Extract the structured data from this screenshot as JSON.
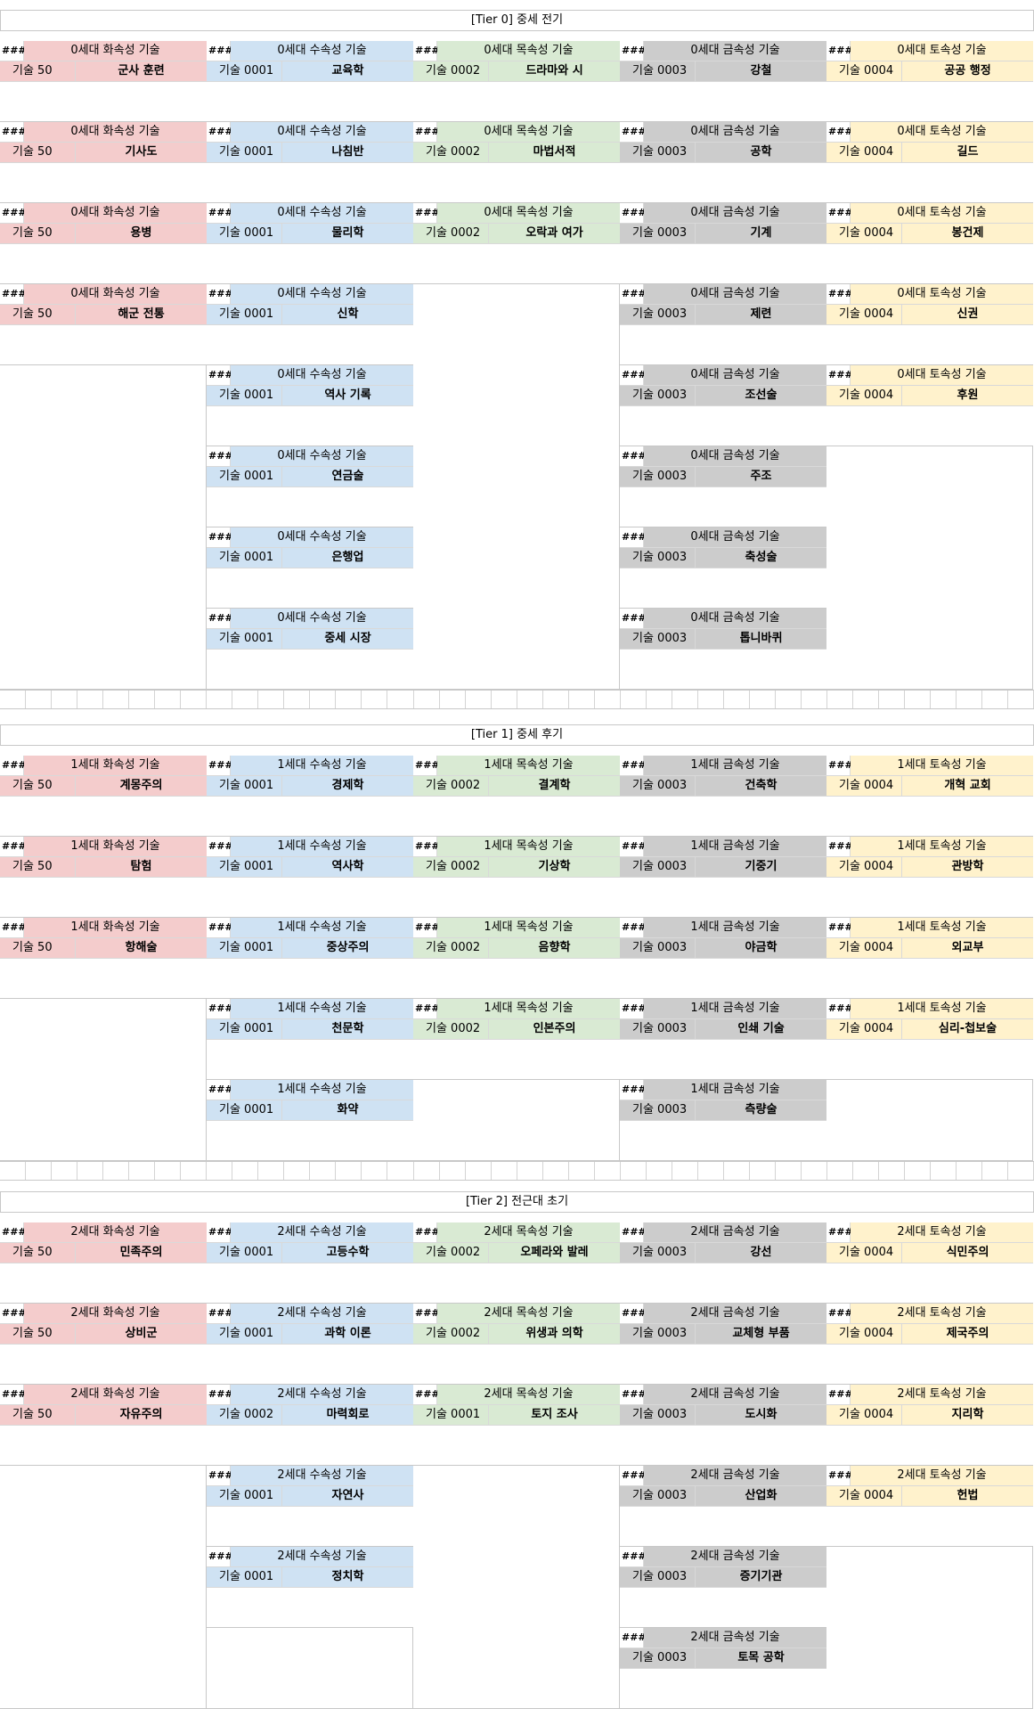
{
  "colors": {
    "fire": "#f4cccc",
    "water": "#cfe2f3",
    "wood": "#d9ead3",
    "metal": "#cccccc",
    "earth": "#fff2cc"
  },
  "hash_label": "###",
  "tiers": [
    {
      "title": "[Tier 0] 중세 전기",
      "columns": [
        {
          "element": "fire",
          "cards": [
            {
              "title": "0세대 화속성 기술",
              "num": "기술 50",
              "name": "군사 훈련"
            },
            {
              "title": "0세대 화속성 기술",
              "num": "기술 50",
              "name": "기사도"
            },
            {
              "title": "0세대 화속성 기술",
              "num": "기술 50",
              "name": "용병"
            },
            {
              "title": "0세대 화속성 기술",
              "num": "기술 50",
              "name": "해군 전통"
            }
          ]
        },
        {
          "element": "water",
          "cards": [
            {
              "title": "0세대 수속성 기술",
              "num": "기술 0001",
              "name": "교육학"
            },
            {
              "title": "0세대 수속성 기술",
              "num": "기술 0001",
              "name": "나침반"
            },
            {
              "title": "0세대 수속성 기술",
              "num": "기술 0001",
              "name": "물리학"
            },
            {
              "title": "0세대 수속성 기술",
              "num": "기술 0001",
              "name": "신학"
            },
            {
              "title": "0세대 수속성 기술",
              "num": "기술 0001",
              "name": "역사 기록"
            },
            {
              "title": "0세대 수속성 기술",
              "num": "기술 0001",
              "name": "연금술"
            },
            {
              "title": "0세대 수속성 기술",
              "num": "기술 0001",
              "name": "은행업"
            },
            {
              "title": "0세대 수속성 기술",
              "num": "기술 0001",
              "name": "중세 시장"
            }
          ]
        },
        {
          "element": "wood",
          "cards": [
            {
              "title": "0세대 목속성 기술",
              "num": "기술 0002",
              "name": "드라마와 시"
            },
            {
              "title": "0세대 목속성 기술",
              "num": "기술 0002",
              "name": "마법서적"
            },
            {
              "title": "0세대 목속성 기술",
              "num": "기술 0002",
              "name": "오락과 여가"
            }
          ]
        },
        {
          "element": "metal",
          "cards": [
            {
              "title": "0세대 금속성 기술",
              "num": "기술 0003",
              "name": "강철"
            },
            {
              "title": "0세대 금속성 기술",
              "num": "기술 0003",
              "name": "공학"
            },
            {
              "title": "0세대 금속성 기술",
              "num": "기술 0003",
              "name": "기계"
            },
            {
              "title": "0세대 금속성 기술",
              "num": "기술 0003",
              "name": "제련"
            },
            {
              "title": "0세대 금속성 기술",
              "num": "기술 0003",
              "name": "조선술"
            },
            {
              "title": "0세대 금속성 기술",
              "num": "기술 0003",
              "name": "주조"
            },
            {
              "title": "0세대 금속성 기술",
              "num": "기술 0003",
              "name": "축성술"
            },
            {
              "title": "0세대 금속성 기술",
              "num": "기술 0003",
              "name": "톱니바퀴"
            }
          ]
        },
        {
          "element": "earth",
          "cards": [
            {
              "title": "0세대 토속성 기술",
              "num": "기술 0004",
              "name": "공공 행정"
            },
            {
              "title": "0세대 토속성 기술",
              "num": "기술 0004",
              "name": "길드"
            },
            {
              "title": "0세대 토속성 기술",
              "num": "기술 0004",
              "name": "봉건제"
            },
            {
              "title": "0세대 토속성 기술",
              "num": "기술 0004",
              "name": "신권"
            },
            {
              "title": "0세대 토속성 기술",
              "num": "기술 0004",
              "name": "후원"
            }
          ]
        }
      ]
    },
    {
      "title": "[Tier 1] 중세 후기",
      "columns": [
        {
          "element": "fire",
          "cards": [
            {
              "title": "1세대 화속성 기술",
              "num": "기술 50",
              "name": "계몽주의"
            },
            {
              "title": "1세대 화속성 기술",
              "num": "기술 50",
              "name": "탐험"
            },
            {
              "title": "1세대 화속성 기술",
              "num": "기술 50",
              "name": "항해술"
            }
          ]
        },
        {
          "element": "water",
          "cards": [
            {
              "title": "1세대 수속성 기술",
              "num": "기술 0001",
              "name": "경제학"
            },
            {
              "title": "1세대 수속성 기술",
              "num": "기술 0001",
              "name": "역사학"
            },
            {
              "title": "1세대 수속성 기술",
              "num": "기술 0001",
              "name": "중상주의"
            },
            {
              "title": "1세대 수속성 기술",
              "num": "기술 0001",
              "name": "천문학"
            },
            {
              "title": "1세대 수속성 기술",
              "num": "기술 0001",
              "name": "화약"
            }
          ]
        },
        {
          "element": "wood",
          "cards": [
            {
              "title": "1세대 목속성 기술",
              "num": "기술 0002",
              "name": "결계학"
            },
            {
              "title": "1세대 목속성 기술",
              "num": "기술 0002",
              "name": "기상학"
            },
            {
              "title": "1세대 목속성 기술",
              "num": "기술 0002",
              "name": "음향학"
            },
            {
              "title": "1세대 목속성 기술",
              "num": "기술 0002",
              "name": "인본주의"
            }
          ]
        },
        {
          "element": "metal",
          "cards": [
            {
              "title": "1세대 금속성 기술",
              "num": "기술 0003",
              "name": "건축학"
            },
            {
              "title": "1세대 금속성 기술",
              "num": "기술 0003",
              "name": "기중기"
            },
            {
              "title": "1세대 금속성 기술",
              "num": "기술 0003",
              "name": "야금학"
            },
            {
              "title": "1세대 금속성 기술",
              "num": "기술 0003",
              "name": "인쇄 기술"
            },
            {
              "title": "1세대 금속성 기술",
              "num": "기술 0003",
              "name": "측량술"
            }
          ]
        },
        {
          "element": "earth",
          "cards": [
            {
              "title": "1세대 토속성 기술",
              "num": "기술 0004",
              "name": "개혁 교회"
            },
            {
              "title": "1세대 토속성 기술",
              "num": "기술 0004",
              "name": "관방학"
            },
            {
              "title": "1세대 토속성 기술",
              "num": "기술 0004",
              "name": "외교부"
            },
            {
              "title": "1세대 토속성 기술",
              "num": "기술 0004",
              "name": "심리-첩보술"
            }
          ]
        }
      ]
    },
    {
      "title": "[Tier 2] 전근대 초기",
      "columns": [
        {
          "element": "fire",
          "cards": [
            {
              "title": "2세대 화속성 기술",
              "num": "기술 50",
              "name": "민족주의"
            },
            {
              "title": "2세대 화속성 기술",
              "num": "기술 50",
              "name": "상비군"
            },
            {
              "title": "2세대 화속성 기술",
              "num": "기술 50",
              "name": "자유주의"
            }
          ]
        },
        {
          "element": "water",
          "cards": [
            {
              "title": "2세대 수속성 기술",
              "num": "기술 0001",
              "name": "고등수학"
            },
            {
              "title": "2세대 수속성 기술",
              "num": "기술 0001",
              "name": "과학 이론"
            },
            {
              "title": "2세대 수속성 기술",
              "num": "기술 0002",
              "name": "마력회로"
            },
            {
              "title": "2세대 수속성 기술",
              "num": "기술 0001",
              "name": "자연사"
            },
            {
              "title": "2세대 수속성 기술",
              "num": "기술 0001",
              "name": "정치학"
            }
          ]
        },
        {
          "element": "wood",
          "cards": [
            {
              "title": "2세대 목속성 기술",
              "num": "기술 0002",
              "name": "오페라와 발레"
            },
            {
              "title": "2세대 목속성 기술",
              "num": "기술 0002",
              "name": "위생과 의학"
            },
            {
              "title": "2세대 목속성 기술",
              "num": "기술 0001",
              "name": "토지 조사"
            }
          ]
        },
        {
          "element": "metal",
          "cards": [
            {
              "title": "2세대 금속성 기술",
              "num": "기술 0003",
              "name": "강선"
            },
            {
              "title": "2세대 금속성 기술",
              "num": "기술 0003",
              "name": "교체형 부품"
            },
            {
              "title": "2세대 금속성 기술",
              "num": "기술 0003",
              "name": "도시화"
            },
            {
              "title": "2세대 금속성 기술",
              "num": "기술 0003",
              "name": "산업화"
            },
            {
              "title": "2세대 금속성 기술",
              "num": "기술 0003",
              "name": "증기기관"
            },
            {
              "title": "2세대 금속성 기술",
              "num": "기술 0003",
              "name": "토목 공학"
            }
          ]
        },
        {
          "element": "earth",
          "cards": [
            {
              "title": "2세대 토속성 기술",
              "num": "기술 0004",
              "name": "식민주의"
            },
            {
              "title": "2세대 토속성 기술",
              "num": "기술 0004",
              "name": "제국주의"
            },
            {
              "title": "2세대 토속성 기술",
              "num": "기술 0004",
              "name": "지리학"
            },
            {
              "title": "2세대 토속성 기술",
              "num": "기술 0004",
              "name": "헌법"
            }
          ]
        }
      ]
    }
  ]
}
